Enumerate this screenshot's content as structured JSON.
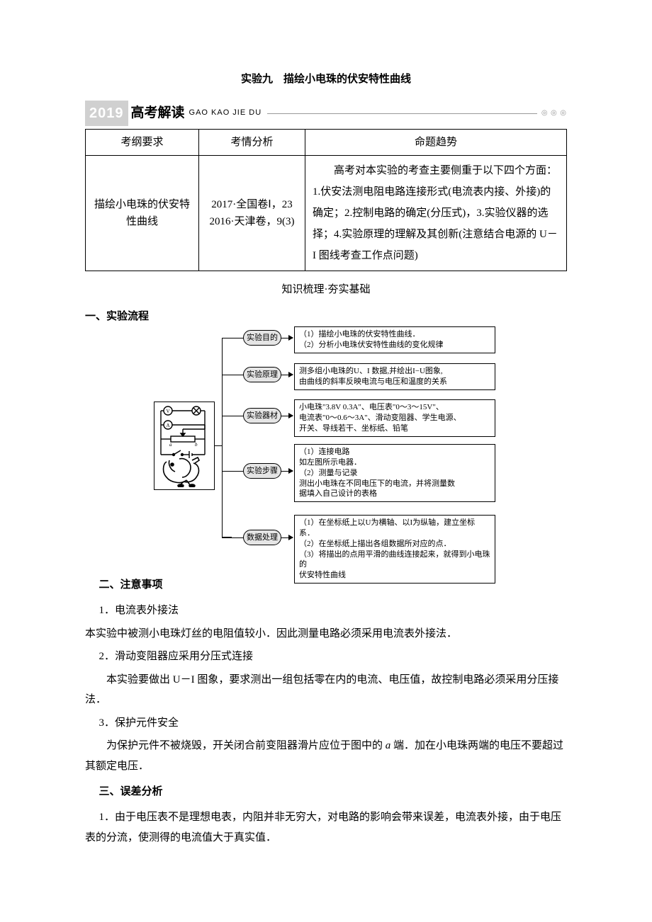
{
  "title": "实验九　描绘小电珠的伏安特性曲线",
  "banner": {
    "year": "2019",
    "label": "高考解读",
    "pinyin": "GAO KAO JIE DU",
    "dots": "◎ ◎ ◎"
  },
  "table": {
    "headers": [
      "考纲要求",
      "考情分析",
      "命题趋势"
    ],
    "row": {
      "req": "描绘小电珠的伏安特性曲线",
      "analysis_l1": "2017·全国卷Ⅰ，23",
      "analysis_l2": "2016·天津卷，9(3)",
      "trend": "　　高考对本实验的考查主要侧重于以下四个方面：1.伏安法测电阻电路连接形式(电流表内接、外接)的确定；2.控制电路的确定(分压式)，3.实验仪器的选择；4.实验原理的理解及其创新(注意结合电源的 U－I 图线考查工作点问题)"
    }
  },
  "subtitle": "知识梳理·夯实基础",
  "section1": {
    "heading": "一、实验流程",
    "flow": {
      "t1": "实验目的",
      "b1_l1": "（1）描绘小电珠的伏安特性曲线．",
      "b1_l2": "（2）分析小电珠伏安特性曲线的变化规律",
      "t2": "实验原理",
      "b2_l1": "测多组小电珠的U、I 数据,并绘出I−U图象,",
      "b2_l2": "由曲线的斜率反映电流与电压和温度的关系",
      "t3": "实验器材",
      "b3_l1": "小电珠\"3.8V 0.3A\"、电压表\"0～3～15V\"、",
      "b3_l2": "电流表\"0～0.6～3A\"、滑动变阻器、学生电源、",
      "b3_l3": "开关、导线若干、坐标纸、铅笔",
      "t4": "实验步骤",
      "b4_l1": "（1）连接电路",
      "b4_l2": "如左图所示电器．",
      "b4_l3": "（2）测量与记录",
      "b4_l4": "测出小电珠在不同电压下的电流，并将测量数",
      "b4_l5": "据填入自己设计的表格",
      "t5": "数据处理",
      "b5_l1": "（1）在坐标纸上以U为横轴、以I为纵轴，建立坐标系．",
      "b5_l2": "（2）在坐标纸上描出各组数据所对应的点．",
      "b5_l3": "（3）将描出的点用平滑的曲线连接起来，就得到小电珠的",
      "b5_l4": "伏安特性曲线"
    }
  },
  "section2": {
    "heading": "二、注意事项",
    "p1_label": "1．电流表外接法",
    "p1_body": "本实验中被测小电珠灯丝的电阻值较小．因此测量电路必须采用电流表外接法．",
    "p2_label": "2．滑动变阻器应采用分压式连接",
    "p2_body": "本实验要做出 U－I 图象，要求测出一组包括零在内的电流、电压值，故控制电路必须采用分压接法．",
    "p3_label": "3．保护元件安全",
    "p3_body_a": "为保护元件不被烧毁，开关闭合前变阻器滑片应位于图中的 ",
    "p3_body_b": "a",
    "p3_body_c": " 端．加在小电珠两端的电压不要超过其额定电压．"
  },
  "section3": {
    "heading": "三、误差分析",
    "p1": "1．由于电压表不是理想电表，内阻并非无穷大，对电路的影响会带来误差，电流表外接，由于电压表的分流，使测得的电流值大于真实值．"
  }
}
